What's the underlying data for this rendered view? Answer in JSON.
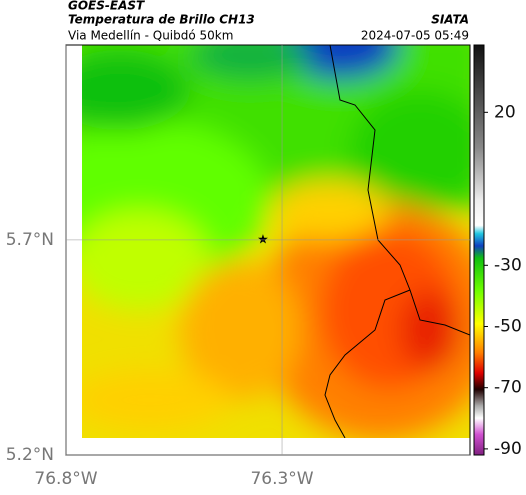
{
  "header": {
    "source": "GOES-EAST",
    "title": "Temperatura de Brillo CH13",
    "org": "SIATA",
    "subtitle": "Via Medellín - Quibdó 50km",
    "datetime": "2024-07-05 05:49"
  },
  "map": {
    "xlim": [
      -76.8,
      -75.865
    ],
    "ylim": [
      5.2,
      6.153
    ],
    "xticks": [
      {
        "value": -76.8,
        "label": "76.8°W"
      },
      {
        "value": -76.3,
        "label": "76.3°W"
      }
    ],
    "yticks": [
      {
        "value": 5.2,
        "label": "5.2°N"
      },
      {
        "value": 5.7,
        "label": "5.7°N"
      }
    ]
  },
  "colorbar": {
    "lim": [
      -92,
      42
    ],
    "ticks": [
      20,
      -30,
      -50,
      -70,
      -90
    ]
  }
}
